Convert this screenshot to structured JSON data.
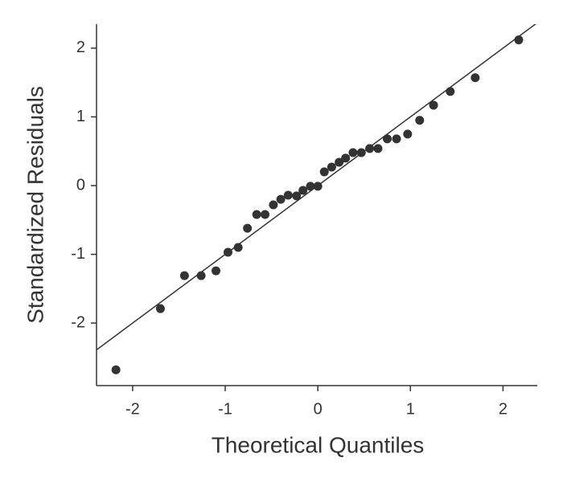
{
  "chart_data": {
    "type": "scatter",
    "xlabel": "Theoretical Quantiles",
    "ylabel": "Standardized Residuals",
    "x": [
      -2.18,
      -1.7,
      -1.44,
      -1.26,
      -1.1,
      -0.97,
      -0.86,
      -0.76,
      -0.66,
      -0.57,
      -0.48,
      -0.4,
      -0.32,
      -0.23,
      -0.16,
      -0.08,
      0.0,
      0.07,
      0.15,
      0.23,
      0.3,
      0.38,
      0.47,
      0.56,
      0.65,
      0.75,
      0.85,
      0.97,
      1.1,
      1.25,
      1.43,
      1.7,
      2.17
    ],
    "values": [
      -2.68,
      -1.79,
      -1.31,
      -1.31,
      -1.24,
      -0.97,
      -0.9,
      -0.62,
      -0.42,
      -0.42,
      -0.28,
      -0.2,
      -0.14,
      -0.15,
      -0.07,
      -0.01,
      -0.01,
      0.2,
      0.27,
      0.34,
      0.4,
      0.48,
      0.48,
      0.54,
      0.54,
      0.68,
      0.68,
      0.75,
      0.95,
      1.17,
      1.37,
      1.57,
      2.12
    ],
    "color": "#333333",
    "reference_line": {
      "slope": 1,
      "intercept": 0,
      "color": "#333333"
    },
    "xlim": [
      -2.39,
      2.37
    ],
    "ylim": [
      -2.91,
      2.35
    ],
    "xticks": [
      -2,
      -1,
      0,
      1,
      2
    ],
    "yticks": [
      -2,
      -1,
      0,
      1,
      2
    ],
    "grid": false
  }
}
